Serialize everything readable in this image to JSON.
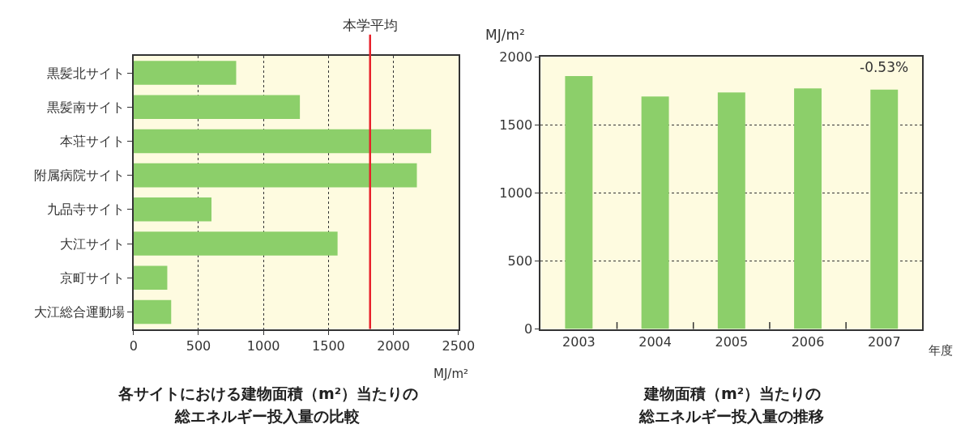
{
  "chart_data": [
    {
      "type": "bar",
      "orientation": "horizontal",
      "title": "各サイトにおける建物面積（m²）当たりの",
      "subtitle": "総エネルギー投入量の比較",
      "xlabel": "MJ/m²",
      "categories": [
        "黒髪北サイト",
        "黒髪南サイト",
        "本荘サイト",
        "附属病院サイト",
        "九品寺サイト",
        "大江サイト",
        "京町サイト",
        "大江総合運動場"
      ],
      "values": [
        790,
        1280,
        2290,
        2180,
        600,
        1570,
        260,
        290
      ],
      "color": "#8ccf6a",
      "xlim": [
        0,
        2500
      ],
      "xticks": [
        0,
        500,
        1000,
        1500,
        2000,
        2500
      ],
      "grid": "x",
      "ref_lines": [
        {
          "axis": "x",
          "value": 1820,
          "label": "本学平均",
          "color": "#e8202a"
        }
      ]
    },
    {
      "type": "bar",
      "title": "建物面積（m²）当たりの",
      "subtitle": "総エネルギー投入量の推移",
      "ylabel": "MJ/m²",
      "xlabel": "年度",
      "categories": [
        "2003",
        "2004",
        "2005",
        "2006",
        "2007"
      ],
      "values": [
        1860,
        1710,
        1740,
        1770,
        1760
      ],
      "color": "#8ccf6a",
      "ylim": [
        0,
        2000
      ],
      "yticks": [
        0,
        500,
        1000,
        1500,
        2000
      ],
      "grid": "y",
      "annotations": [
        {
          "text": "-0.53%",
          "x": "2007",
          "y": 1760
        }
      ]
    }
  ]
}
